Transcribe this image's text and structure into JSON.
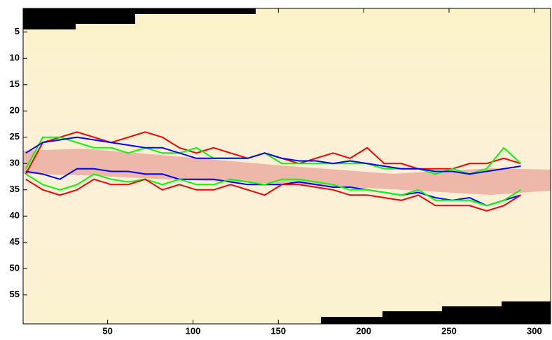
{
  "chart_data": {
    "type": "line",
    "y_reversed": true,
    "x": [
      2,
      12,
      22,
      32,
      42,
      52,
      62,
      72,
      82,
      92,
      102,
      112,
      122,
      132,
      142,
      152,
      162,
      172,
      182,
      192,
      202,
      212,
      222,
      232,
      242,
      252,
      262,
      272,
      282,
      292
    ],
    "series": [
      {
        "color": "#ff0000",
        "values": [
          32,
          26,
          25,
          24,
          25,
          26,
          25,
          24,
          25,
          27,
          28,
          27,
          28,
          29,
          28,
          29,
          30,
          29,
          28,
          29,
          27,
          30,
          30,
          31,
          31,
          31,
          30,
          30,
          29,
          30
        ]
      },
      {
        "color": "#00ff00",
        "values": [
          31,
          25,
          25,
          26,
          27,
          27,
          28,
          27,
          28,
          28,
          27,
          29,
          29,
          29,
          28,
          30,
          30,
          30,
          30,
          30,
          30,
          31,
          31,
          31,
          32,
          31,
          32,
          31,
          27,
          30
        ]
      },
      {
        "color": "#0000ff",
        "values": [
          28,
          26,
          25.5,
          25,
          25.5,
          26,
          26.5,
          27,
          27,
          28,
          29,
          29,
          29,
          29,
          28,
          29,
          29.5,
          29.5,
          30,
          29.5,
          30,
          30.5,
          31,
          31,
          31.5,
          31.5,
          32,
          31.5,
          31,
          30.5
        ]
      },
      {
        "color": "#0000ff",
        "values": [
          31.5,
          32,
          33,
          31,
          31,
          31.5,
          31.5,
          32,
          32,
          33,
          33,
          33,
          33.5,
          34,
          34,
          34,
          33.5,
          34,
          34.5,
          34.5,
          35,
          35.5,
          36,
          35.5,
          36.5,
          37,
          36.5,
          38,
          37,
          36
        ]
      },
      {
        "color": "#00ff00",
        "values": [
          32,
          34,
          35,
          34,
          32,
          33,
          33.5,
          33,
          34,
          33,
          34,
          34,
          33,
          33.5,
          34,
          33,
          33,
          33.5,
          34,
          35,
          35,
          35.5,
          36,
          35,
          37,
          37,
          37,
          38,
          37,
          35
        ]
      },
      {
        "color": "#ff0000",
        "values": [
          33,
          35,
          36,
          35,
          33,
          34,
          34,
          33,
          35,
          34,
          35,
          35,
          34,
          35,
          36,
          34,
          34,
          34.5,
          35,
          36,
          36,
          36.5,
          37,
          36,
          38,
          38,
          38,
          39,
          38,
          36
        ]
      }
    ],
    "xlim": [
      0.5,
      309.5
    ],
    "ylim": [
      0.5,
      60.5
    ],
    "xticks": [
      50,
      100,
      150,
      200,
      250,
      300
    ],
    "yticks": [
      5,
      10,
      15,
      20,
      25,
      30,
      35,
      40,
      45,
      50,
      55
    ]
  }
}
